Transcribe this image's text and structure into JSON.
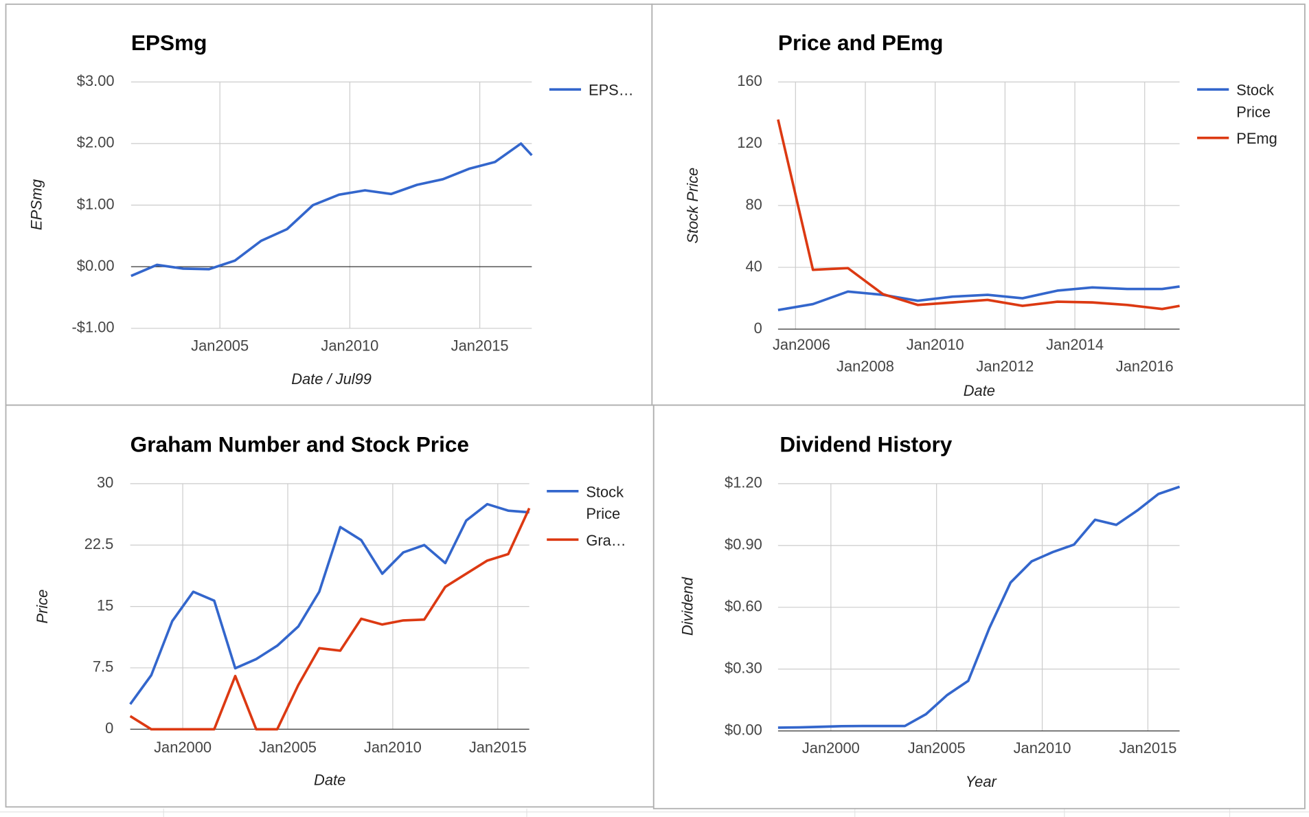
{
  "chart_data": [
    {
      "type": "line",
      "title": "EPSmg",
      "y_label": "EPSmg",
      "x_label": "Date / Jul99",
      "x": [
        "2001-08",
        "2002-08",
        "2003-08",
        "2004-08",
        "2005-08",
        "2006-08",
        "2007-08",
        "2008-08",
        "2009-08",
        "2010-08",
        "2011-08",
        "2012-08",
        "2013-08",
        "2014-08",
        "2015-08",
        "2016-08",
        "2017-01"
      ],
      "series": [
        {
          "name": "EPS…",
          "color": "#3366cc",
          "values": [
            -0.15,
            0.03,
            -0.03,
            -0.04,
            0.1,
            0.42,
            0.61,
            1.0,
            1.17,
            1.24,
            1.18,
            1.33,
            1.42,
            1.59,
            1.7,
            2.0,
            1.81
          ]
        }
      ],
      "xlim": [
        "2001-08",
        "2017-01"
      ],
      "xticks": [
        {
          "value": "2005-01",
          "label": "Jan2005"
        },
        {
          "value": "2010-01",
          "label": "Jan2010"
        },
        {
          "value": "2015-01",
          "label": "Jan2015"
        }
      ],
      "ylim": [
        -1,
        3
      ],
      "yticks": [
        {
          "value": 3,
          "label": "$3.00"
        },
        {
          "value": 2,
          "label": "$2.00"
        },
        {
          "value": 1,
          "label": "$1.00"
        },
        {
          "value": 0,
          "label": "$0.00"
        },
        {
          "value": -1,
          "label": "-$1.00"
        }
      ],
      "grid": true,
      "legend": "right"
    },
    {
      "type": "line",
      "title": "Price and PEmg",
      "y_label": "Stock Price",
      "x_label": "Date",
      "x": [
        "2005-07",
        "2006-07",
        "2007-07",
        "2008-07",
        "2009-07",
        "2010-07",
        "2011-07",
        "2012-07",
        "2013-07",
        "2014-07",
        "2015-07",
        "2016-07",
        "2017-01"
      ],
      "series": [
        {
          "name": "Stock Price",
          "color": "#3366cc",
          "values": [
            12.4,
            16.2,
            24.3,
            22.2,
            18.4,
            21,
            22.2,
            20,
            24.9,
            27,
            26,
            26,
            27.6
          ]
        },
        {
          "name": "PEmg",
          "color": "#dc3912",
          "values": [
            135.7,
            38.4,
            39.5,
            22.7,
            15.7,
            17.3,
            18.9,
            15.1,
            17.8,
            17.3,
            15.7,
            13,
            15.1
          ]
        }
      ],
      "xlim": [
        "2005-07",
        "2017-01"
      ],
      "xticks": [
        {
          "value": "2006-01",
          "label": "Jan2006"
        },
        {
          "value": "2008-01",
          "label": "Jan2008"
        },
        {
          "value": "2010-01",
          "label": "Jan2010"
        },
        {
          "value": "2012-01",
          "label": "Jan2012"
        },
        {
          "value": "2014-01",
          "label": "Jan2014"
        },
        {
          "value": "2016-01",
          "label": "Jan2016"
        }
      ],
      "ylim": [
        0,
        160
      ],
      "yticks": [
        160,
        120,
        80,
        40,
        0
      ],
      "grid": true,
      "legend": "right"
    },
    {
      "type": "line",
      "title": "Graham Number and Stock Price",
      "y_label": "Price",
      "x_label": "Date",
      "x": [
        "1997-07",
        "1998-07",
        "1999-07",
        "2000-07",
        "2001-07",
        "2002-07",
        "2003-07",
        "2004-07",
        "2005-07",
        "2006-07",
        "2007-07",
        "2008-07",
        "2009-07",
        "2010-07",
        "2011-07",
        "2012-07",
        "2013-07",
        "2014-07",
        "2015-07",
        "2016-07"
      ],
      "series": [
        {
          "name": "Stock Price",
          "color": "#3366cc",
          "values": [
            3.06,
            6.6,
            13.2,
            16.8,
            15.7,
            7.45,
            8.57,
            10.2,
            12.55,
            16.8,
            24.7,
            23.1,
            19,
            21.6,
            22.5,
            20.3,
            25.5,
            27.5,
            26.7,
            26.5
          ]
        },
        {
          "name": "Gra…",
          "color": "#dc3912",
          "values": [
            1.6,
            0,
            0,
            0,
            0,
            6.5,
            0,
            0,
            5.4,
            9.9,
            9.6,
            13.5,
            12.8,
            13.3,
            13.4,
            17.4,
            19,
            20.6,
            21.4,
            27
          ]
        }
      ],
      "xlim": [
        "1997-07",
        "2016-07"
      ],
      "xticks": [
        {
          "value": "2000-01",
          "label": "Jan2000"
        },
        {
          "value": "2005-01",
          "label": "Jan2005"
        },
        {
          "value": "2010-01",
          "label": "Jan2010"
        },
        {
          "value": "2015-01",
          "label": "Jan2015"
        }
      ],
      "ylim": [
        0,
        30
      ],
      "yticks": [
        30,
        22.5,
        15,
        7.5,
        0
      ],
      "grid": true,
      "legend": "right"
    },
    {
      "type": "line",
      "title": "Dividend History",
      "y_label": "Dividend",
      "x_label": "Year",
      "x": [
        "1997-07",
        "1998-07",
        "1999-07",
        "2000-07",
        "2001-07",
        "2002-07",
        "2003-07",
        "2004-07",
        "2005-07",
        "2006-07",
        "2007-07",
        "2008-07",
        "2009-07",
        "2010-07",
        "2011-07",
        "2012-07",
        "2013-07",
        "2014-07",
        "2015-07",
        "2016-07"
      ],
      "series": [
        {
          "color": "#3366cc",
          "values": [
            0.016,
            0.017,
            0.02,
            0.023,
            0.024,
            0.024,
            0.024,
            0.081,
            0.174,
            0.243,
            0.5,
            0.72,
            0.823,
            0.868,
            0.904,
            1.025,
            1.0,
            1.07,
            1.15,
            1.185
          ]
        }
      ],
      "xlim": [
        "1997-07",
        "2016-07"
      ],
      "xticks": [
        {
          "value": "2000-01",
          "label": "Jan2000"
        },
        {
          "value": "2005-01",
          "label": "Jan2005"
        },
        {
          "value": "2010-01",
          "label": "Jan2010"
        },
        {
          "value": "2015-01",
          "label": "Jan2015"
        }
      ],
      "ylim": [
        0,
        1.2
      ],
      "yticks": [
        {
          "value": 1.2,
          "label": "$1.20"
        },
        {
          "value": 0.9,
          "label": "$0.90"
        },
        {
          "value": 0.6,
          "label": "$0.60"
        },
        {
          "value": 0.3,
          "label": "$0.30"
        },
        {
          "value": 0,
          "label": "$0.00"
        }
      ],
      "grid": true
    }
  ]
}
